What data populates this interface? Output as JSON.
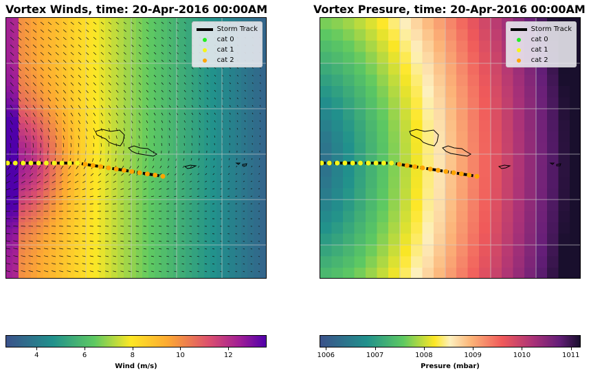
{
  "chart_data": [
    {
      "type": "heatmap",
      "title": "Vortex Winds, time: 20-Apr-2016 00:00AM",
      "field": "wind speed with direction arrows",
      "colormap": "plasma-viridis",
      "colorbar": {
        "label": "Wind (m/s)",
        "range": [
          2.7,
          13.6
        ],
        "ticks": [
          "4",
          "6",
          "8",
          "10",
          "12"
        ],
        "tick_values": [
          4,
          6,
          8,
          10,
          12
        ]
      },
      "legend": {
        "position": "top-right",
        "entries": [
          {
            "label": "Storm Track",
            "kind": "line",
            "color": "#000000"
          },
          {
            "label": "cat 0",
            "kind": "dot",
            "color": "#22ee22"
          },
          {
            "label": "cat 1",
            "kind": "dot",
            "color": "#f5f51a"
          },
          {
            "label": "cat 2",
            "kind": "dot",
            "color": "#ffa500"
          }
        ]
      },
      "storm_track_categories": [
        1,
        1,
        1,
        1,
        1,
        1,
        1,
        1,
        1,
        1,
        2,
        2,
        2,
        2,
        2,
        2,
        2,
        2,
        2,
        2,
        2
      ],
      "grid": true
    },
    {
      "type": "heatmap",
      "title": "Vortex Presure, time: 20-Apr-2016 00:00AM",
      "field": "pressure",
      "colormap": "viridis-magma",
      "colorbar": {
        "label": "Presure (mbar)",
        "range": [
          1005.87,
          1011.2
        ],
        "ticks": [
          "1006",
          "1007",
          "1008",
          "1009",
          "1010",
          "1011"
        ],
        "tick_values": [
          1006,
          1007,
          1008,
          1009,
          1010,
          1011
        ]
      },
      "legend": {
        "position": "top-right",
        "entries": [
          {
            "label": "Storm Track",
            "kind": "line",
            "color": "#000000"
          },
          {
            "label": "cat 0",
            "kind": "dot",
            "color": "#22ee22"
          },
          {
            "label": "cat 1",
            "kind": "dot",
            "color": "#f5f51a"
          },
          {
            "label": "cat 2",
            "kind": "dot",
            "color": "#ffa500"
          }
        ]
      },
      "storm_track_categories": [
        1,
        1,
        1,
        1,
        1,
        1,
        1,
        1,
        1,
        1,
        2,
        2,
        2,
        2,
        2,
        2,
        2,
        2,
        2,
        2,
        2
      ],
      "grid": true
    }
  ]
}
